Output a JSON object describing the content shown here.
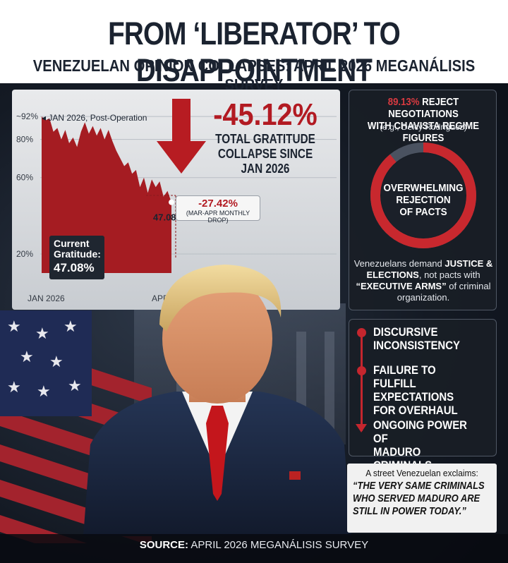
{
  "header": {
    "title": "FROM ‘LIBERATOR’ TO DISAPPOINTMENT",
    "subtitle": "VENEZUELAN OPINION COLLAPSES: APRIL 2026 MEGANÁLISIS SURVEY"
  },
  "chart_data": {
    "type": "area",
    "x_start_label": "JAN 2026",
    "x_end_label": "APR 2026",
    "y_ticks": [
      "~92%",
      "80%",
      "60%",
      "20%"
    ],
    "y_range": [
      10,
      95
    ],
    "values": [
      92,
      90,
      91,
      84,
      86,
      80,
      85,
      78,
      81,
      76,
      84,
      89,
      83,
      87,
      82,
      86,
      80,
      85,
      79,
      74,
      70,
      66,
      68,
      62,
      64,
      55,
      60,
      52,
      59,
      55,
      58,
      50,
      53,
      47.08
    ],
    "start_annotation": "◂ JAN 2026, Post-Operation",
    "end_label": "47.08%",
    "series_color": "#a51c22"
  },
  "headline": {
    "value": "-45.12%",
    "caption_lines": [
      "TOTAL GRATITUDE",
      "COLLAPSE SINCE",
      "JAN 2026"
    ]
  },
  "monthly_drop": {
    "value": "-27.42%",
    "caption": "(MAR-APR MONTHLY DROP)"
  },
  "current": {
    "label_lines": [
      "Current",
      "Gratitude:"
    ],
    "value": "47.08%"
  },
  "negotiations": {
    "percent": "89.13%",
    "percent_value": 89.13,
    "head_rest": " REJECT NEGOTIATIONS",
    "head_line2": "WITH CHAVISTA REGIME FIGURES",
    "example": "(e.g., Delcy Rodríguez)",
    "donut_lines": [
      "OVERWHELMING",
      "REJECTION",
      "OF PACTS"
    ],
    "foot_pre": "Venezuelans demand ",
    "foot_bold1": "JUSTICE & ELECTIONS",
    "foot_mid": ", not pacts with ",
    "foot_bold2": "“EXECUTIVE ARMS”",
    "foot_post": " of criminal organization.",
    "accent": "#c8282e"
  },
  "reasons": [
    {
      "lines": [
        "DISCURSIVE",
        "INCONSISTENCY"
      ]
    },
    {
      "lines": [
        "FAILURE TO FULFILL",
        "EXPECTATIONS",
        "FOR OVERHAUL"
      ]
    },
    {
      "lines": [
        "ONGOING POWER OF",
        "MADURO CRIMINALS"
      ]
    }
  ],
  "quote": {
    "intro": "A street Venezuelan exclaims:",
    "lines": [
      "“THE VERY SAME CRIMINALS",
      "WHO SERVED MADURO ARE",
      "STILL IN POWER TODAY.”"
    ]
  },
  "source": {
    "label": "SOURCE:",
    "text": " APRIL 2026 MEGANÁLISIS SURVEY"
  }
}
